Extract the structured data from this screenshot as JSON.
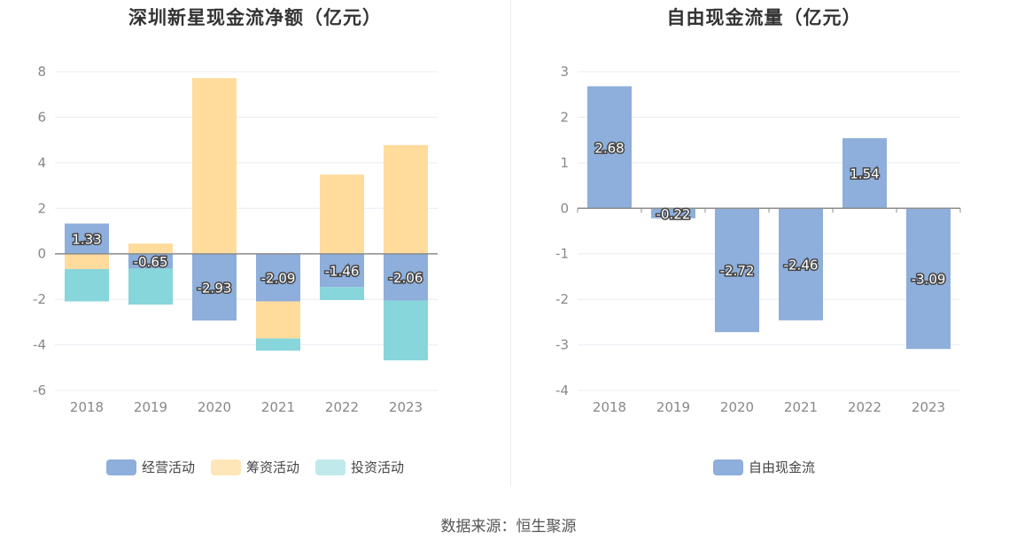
{
  "source_label": "数据来源：恒生聚源",
  "chart_data": [
    {
      "type": "bar",
      "stacked": true,
      "title": "深圳新星现金流净额（亿元）",
      "categories": [
        "2018",
        "2019",
        "2020",
        "2021",
        "2022",
        "2023"
      ],
      "ylim": [
        -6,
        8
      ],
      "yticks": [
        -6,
        -4,
        -2,
        0,
        2,
        4,
        6,
        8
      ],
      "grid": true,
      "legend_position": "bottom",
      "series": [
        {
          "name": "经营活动",
          "color": "#8eaedb",
          "values": [
            1.33,
            -0.65,
            -2.93,
            -2.09,
            -1.46,
            -2.06
          ],
          "labels": [
            "1.33",
            "-0.65",
            "-2.93",
            "-2.09",
            "-1.46",
            "-2.06"
          ]
        },
        {
          "name": "筹资活动",
          "color": "#ffdb9c",
          "values": [
            -0.67,
            0.45,
            7.72,
            -1.63,
            3.48,
            4.78
          ]
        },
        {
          "name": "投资活动",
          "color": "#86d6db",
          "values": [
            -1.42,
            -1.58,
            0,
            -0.53,
            -0.57,
            -2.62
          ]
        }
      ]
    },
    {
      "type": "bar",
      "title": "自由现金流量（亿元）",
      "categories": [
        "2018",
        "2019",
        "2020",
        "2021",
        "2022",
        "2023"
      ],
      "ylim": [
        -4,
        3
      ],
      "yticks": [
        -4,
        -3,
        -2,
        -1,
        0,
        1,
        2,
        3
      ],
      "grid": true,
      "legend_position": "bottom",
      "series": [
        {
          "name": "自由现金流",
          "color": "#8eaedb",
          "values": [
            2.68,
            -0.22,
            -2.72,
            -2.46,
            1.54,
            -3.09
          ],
          "labels": [
            "2.68",
            "-0.22",
            "-2.72",
            "-2.46",
            "1.54",
            "-3.09"
          ]
        }
      ]
    }
  ]
}
